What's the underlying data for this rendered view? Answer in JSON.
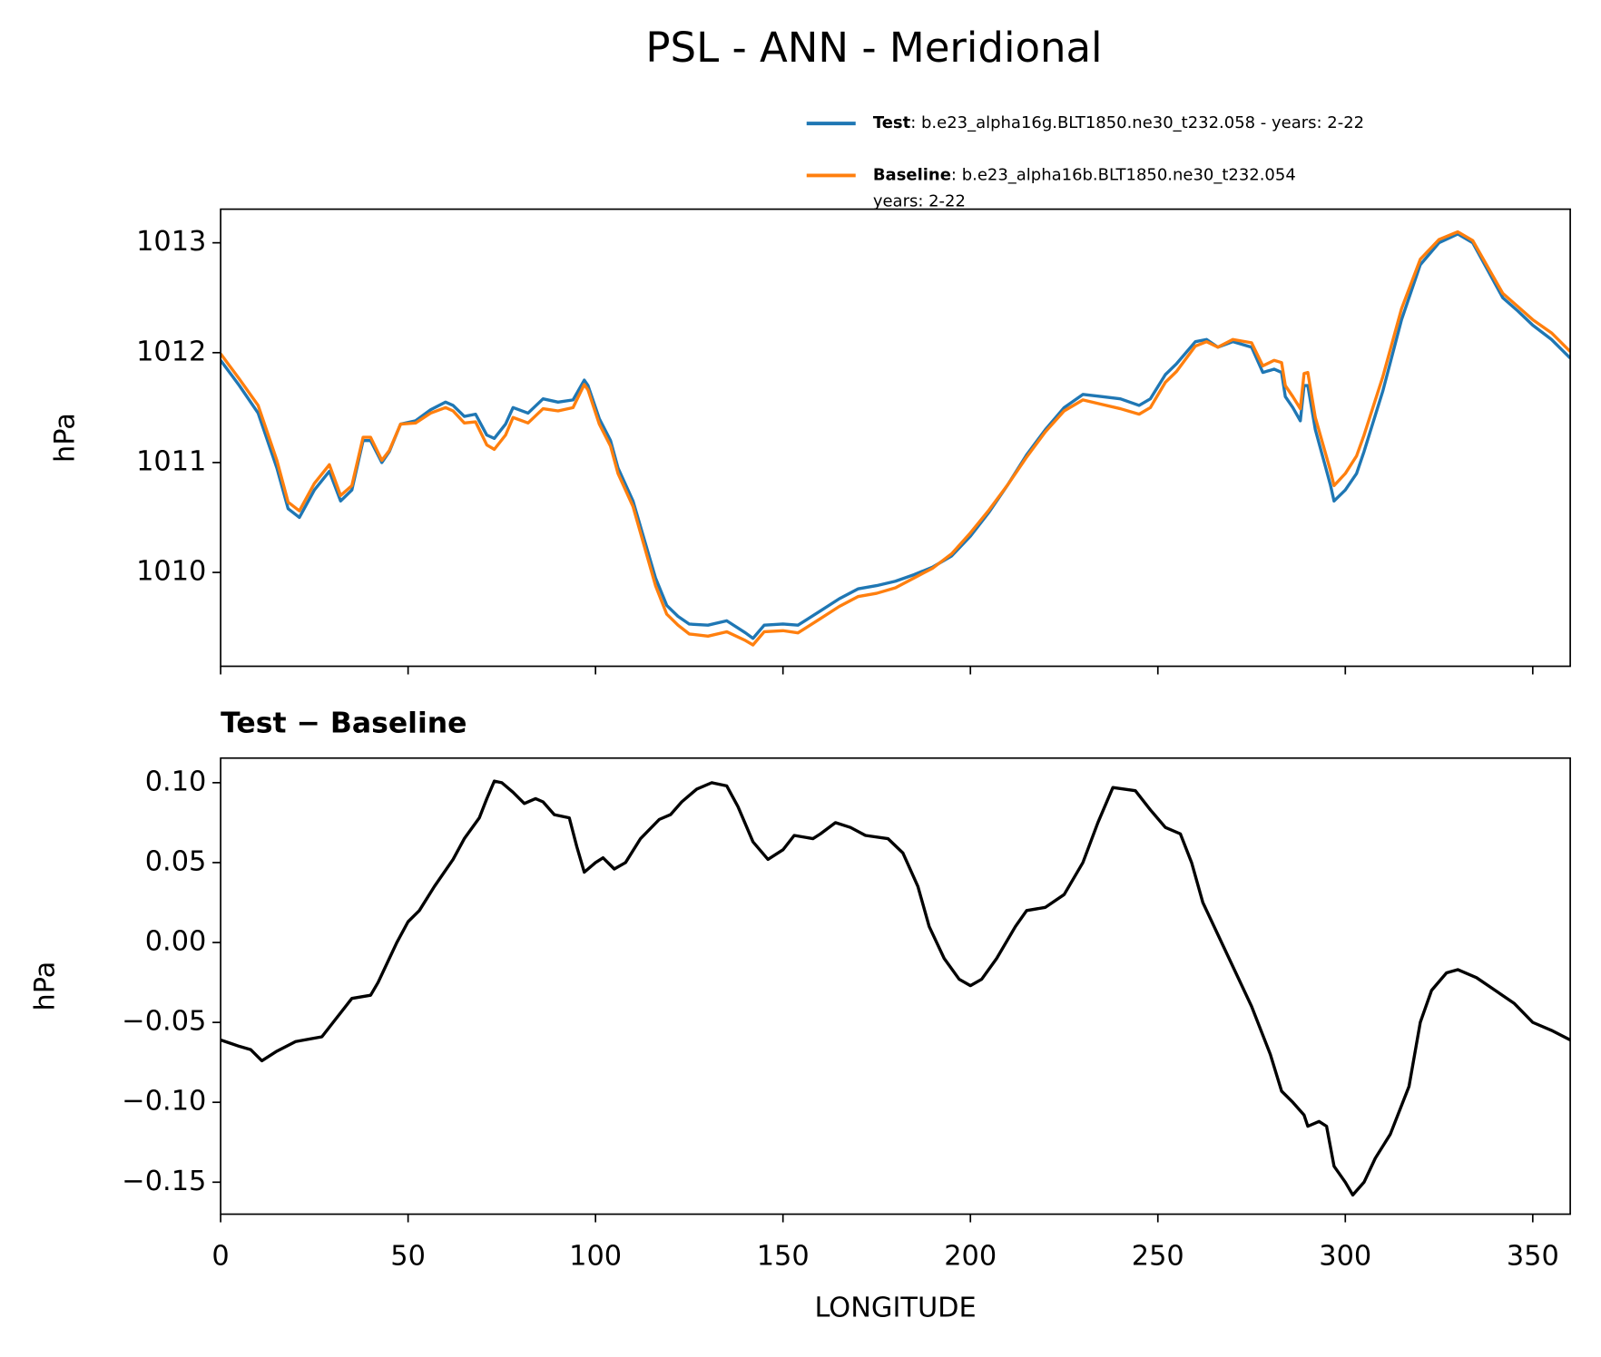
{
  "title": "PSL - ANN - Meridional",
  "chart_data": [
    {
      "type": "line",
      "ylabel": "hPa",
      "x": [
        0,
        5,
        10,
        15,
        18,
        21,
        25,
        29,
        32,
        35,
        38,
        40,
        43,
        45,
        48,
        52,
        56,
        60,
        62,
        65,
        68,
        71,
        73,
        76,
        78,
        82,
        86,
        90,
        94,
        97,
        98,
        101,
        104,
        106,
        110,
        113,
        116,
        119,
        122,
        125,
        130,
        135,
        140,
        142,
        145,
        150,
        154,
        160,
        165,
        170,
        175,
        180,
        185,
        190,
        195,
        200,
        205,
        210,
        215,
        220,
        225,
        230,
        235,
        240,
        245,
        248,
        252,
        255,
        260,
        263,
        266,
        270,
        275,
        278,
        281,
        283,
        284,
        286,
        288,
        289,
        290,
        292,
        296,
        297,
        300,
        303,
        305,
        310,
        315,
        320,
        325,
        330,
        334,
        338,
        342,
        346,
        350,
        355,
        360
      ],
      "xlim": [
        0,
        360
      ],
      "xticks": [
        0,
        50,
        100,
        150,
        200,
        250,
        300,
        350
      ],
      "xtick_labels": false,
      "ylim": [
        1009.146,
        1013.306
      ],
      "yticks": [
        1010,
        1011,
        1012,
        1013
      ],
      "series": [
        {
          "name": "Test",
          "detail": [
            ": b.e23_alpha16g.BLT1850.ne30_t232.058 - years: 2-22"
          ],
          "color": "#1f77b4",
          "values": [
            1011.93,
            1011.7,
            1011.45,
            1010.95,
            1010.58,
            1010.5,
            1010.75,
            1010.92,
            1010.65,
            1010.75,
            1011.2,
            1011.2,
            1011.0,
            1011.1,
            1011.35,
            1011.38,
            1011.48,
            1011.55,
            1011.52,
            1011.42,
            1011.44,
            1011.25,
            1011.22,
            1011.35,
            1011.5,
            1011.45,
            1011.58,
            1011.55,
            1011.57,
            1011.75,
            1011.7,
            1011.4,
            1011.2,
            1010.95,
            1010.65,
            1010.3,
            1009.95,
            1009.7,
            1009.6,
            1009.53,
            1009.52,
            1009.56,
            1009.45,
            1009.4,
            1009.52,
            1009.53,
            1009.52,
            1009.65,
            1009.76,
            1009.85,
            1009.88,
            1009.92,
            1009.98,
            1010.05,
            1010.15,
            1010.33,
            1010.55,
            1010.8,
            1011.07,
            1011.3,
            1011.5,
            1011.62,
            1011.6,
            1011.58,
            1011.52,
            1011.58,
            1011.8,
            1011.9,
            1012.1,
            1012.12,
            1012.05,
            1012.1,
            1012.05,
            1011.82,
            1011.85,
            1011.82,
            1011.6,
            1011.5,
            1011.38,
            1011.7,
            1011.7,
            1011.3,
            1010.8,
            1010.65,
            1010.75,
            1010.9,
            1011.1,
            1011.65,
            1012.3,
            1012.8,
            1013.0,
            1013.08,
            1013.0,
            1012.75,
            1012.5,
            1012.38,
            1012.25,
            1012.12,
            1011.95
          ]
        },
        {
          "name": "Baseline",
          "detail": [
            ": b.e23_alpha16b.BLT1850.ne30_t232.054",
            "years: 2-22"
          ],
          "color": "#ff7f0e",
          "values": [
            1011.99,
            1011.76,
            1011.52,
            1011.02,
            1010.64,
            1010.56,
            1010.81,
            1010.98,
            1010.7,
            1010.79,
            1011.23,
            1011.23,
            1011.02,
            1011.11,
            1011.35,
            1011.36,
            1011.45,
            1011.5,
            1011.47,
            1011.36,
            1011.37,
            1011.16,
            1011.12,
            1011.25,
            1011.41,
            1011.36,
            1011.49,
            1011.47,
            1011.5,
            1011.71,
            1011.66,
            1011.35,
            1011.15,
            1010.9,
            1010.6,
            1010.24,
            1009.88,
            1009.62,
            1009.52,
            1009.44,
            1009.42,
            1009.46,
            1009.38,
            1009.34,
            1009.46,
            1009.47,
            1009.45,
            1009.58,
            1009.69,
            1009.78,
            1009.81,
            1009.86,
            1009.95,
            1010.04,
            1010.17,
            1010.36,
            1010.57,
            1010.8,
            1011.05,
            1011.28,
            1011.47,
            1011.57,
            1011.53,
            1011.49,
            1011.44,
            1011.5,
            1011.73,
            1011.83,
            1012.06,
            1012.1,
            1012.05,
            1012.12,
            1012.09,
            1011.88,
            1011.93,
            1011.91,
            1011.7,
            1011.6,
            1011.49,
            1011.81,
            1011.82,
            1011.41,
            1010.93,
            1010.79,
            1010.9,
            1011.06,
            1011.25,
            1011.78,
            1012.4,
            1012.85,
            1013.03,
            1013.1,
            1013.02,
            1012.78,
            1012.54,
            1012.42,
            1012.3,
            1012.18,
            1012.01
          ]
        }
      ]
    },
    {
      "type": "line",
      "title": "Test − Baseline",
      "xlabel": "LONGITUDE",
      "ylabel": "hPa",
      "x": [
        0,
        5,
        8,
        11,
        15,
        20,
        27,
        30,
        35,
        40,
        42,
        45,
        47,
        50,
        53,
        57,
        62,
        65,
        69,
        71,
        73,
        75,
        78,
        81,
        84,
        86,
        89,
        93,
        95,
        97,
        100,
        102,
        105,
        108,
        112,
        117,
        120,
        123,
        127,
        131,
        135,
        138,
        142,
        146,
        150,
        153,
        158,
        160,
        164,
        168,
        172,
        178,
        182,
        186,
        189,
        193,
        197,
        200,
        203,
        207,
        212,
        215,
        220,
        225,
        230,
        234,
        238,
        244,
        248,
        252,
        256,
        259,
        262,
        266,
        271,
        275,
        280,
        283,
        286,
        289,
        290,
        293,
        295,
        297,
        300,
        302,
        305,
        308,
        312,
        317,
        320,
        323,
        327,
        330,
        335,
        340,
        345,
        350,
        355,
        360
      ],
      "xlim": [
        0,
        360
      ],
      "xticks": [
        0,
        50,
        100,
        150,
        200,
        250,
        300,
        350
      ],
      "ylim": [
        -0.17,
        0.1154
      ],
      "yticks": [
        {
          "value": -0.15,
          "label": "−0.15"
        },
        {
          "value": -0.1,
          "label": "−0.10"
        },
        {
          "value": -0.05,
          "label": "−0.05"
        },
        {
          "value": 0,
          "label": "0.00"
        },
        {
          "value": 0.05,
          "label": "0.05"
        },
        {
          "value": 0.1,
          "label": "0.10"
        }
      ],
      "series": [
        {
          "color": "#000000",
          "values": [
            -0.061,
            -0.065,
            -0.067,
            -0.074,
            -0.068,
            -0.062,
            -0.059,
            -0.05,
            -0.035,
            -0.033,
            -0.025,
            -0.01,
            0.0,
            0.013,
            0.02,
            0.035,
            0.052,
            0.065,
            0.078,
            0.09,
            0.101,
            0.1,
            0.094,
            0.087,
            0.09,
            0.088,
            0.08,
            0.078,
            0.06,
            0.044,
            0.05,
            0.053,
            0.046,
            0.05,
            0.065,
            0.077,
            0.08,
            0.088,
            0.096,
            0.1,
            0.098,
            0.085,
            0.063,
            0.052,
            0.058,
            0.067,
            0.065,
            0.068,
            0.075,
            0.072,
            0.067,
            0.065,
            0.056,
            0.035,
            0.01,
            -0.01,
            -0.023,
            -0.027,
            -0.023,
            -0.01,
            0.01,
            0.02,
            0.022,
            0.03,
            0.05,
            0.075,
            0.097,
            0.095,
            0.083,
            0.072,
            0.068,
            0.05,
            0.025,
            0.005,
            -0.02,
            -0.04,
            -0.07,
            -0.093,
            -0.1,
            -0.108,
            -0.115,
            -0.112,
            -0.115,
            -0.14,
            -0.15,
            -0.158,
            -0.15,
            -0.135,
            -0.12,
            -0.09,
            -0.05,
            -0.03,
            -0.019,
            -0.017,
            -0.022,
            -0.03,
            -0.038,
            -0.05,
            -0.055,
            -0.061
          ]
        }
      ]
    }
  ]
}
